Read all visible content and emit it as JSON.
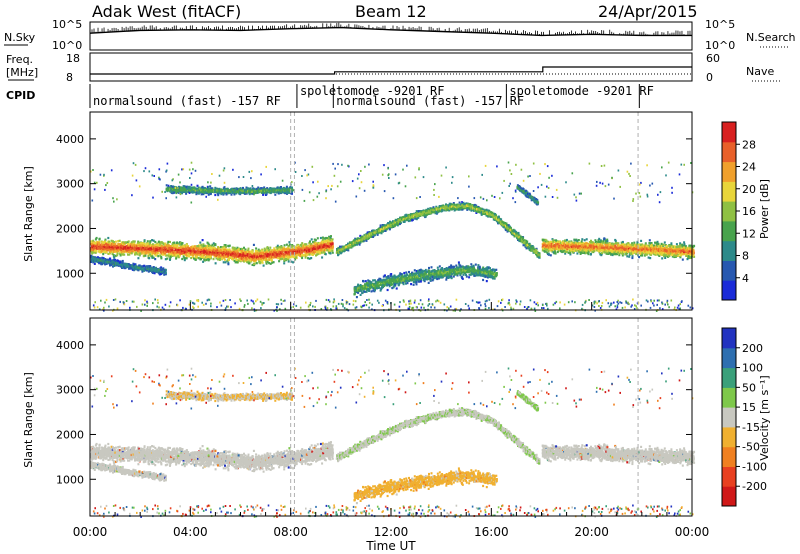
{
  "header": {
    "station": "Adak West (fitACF)",
    "beam": "Beam 12",
    "date": "24/Apr/2015"
  },
  "summary_panels": {
    "nsky": {
      "label": "N.Sky",
      "ticks": [
        "10^5",
        "10^0"
      ]
    },
    "nsearch": {
      "label": "N.Search",
      "ticks": [
        "10^5",
        "10^0"
      ]
    },
    "freq": {
      "label_line1": "Freq.",
      "label_line2": "[MHz]",
      "ticks": [
        "18",
        "8"
      ]
    },
    "nave": {
      "label": "Nave",
      "ticks": [
        "60",
        "0"
      ]
    },
    "cpid": {
      "label": "CPID",
      "segments": [
        {
          "start_h": 0.0,
          "end_h": 8.25,
          "text": "normalsound (fast) -157 RF"
        },
        {
          "start_h": 8.25,
          "end_h": 9.7,
          "text": "spoletomode -9201 RF"
        },
        {
          "start_h": 9.7,
          "end_h": 16.6,
          "text": "normalsound (fast) -157 RF"
        },
        {
          "start_h": 16.6,
          "end_h": 21.9,
          "text": "spoletomode -9201 RF"
        }
      ]
    }
  },
  "axes": {
    "xlabel": "Time UT",
    "xticks": [
      "00:00",
      "04:00",
      "08:00",
      "12:00",
      "16:00",
      "20:00",
      "00:00"
    ],
    "xlim_hours": [
      0,
      24
    ],
    "ylabel": "Slant Range [km]",
    "yticks": [
      "1000",
      "2000",
      "3000",
      "4000"
    ],
    "ylim_km": [
      180,
      4600
    ]
  },
  "colorbars": {
    "power": {
      "label": "Power [dB]",
      "ticks": [
        "4",
        "8",
        "12",
        "16",
        "20",
        "24",
        "28"
      ],
      "colors": [
        "#1a2bd8",
        "#2758b0",
        "#2d8a8a",
        "#48a34d",
        "#8fc043",
        "#e8d53a",
        "#f0a02c",
        "#e8602a",
        "#d82020"
      ]
    },
    "velocity": {
      "label": "Velocity [m s⁻¹]",
      "ticks": [
        "200",
        "100",
        "50",
        "15",
        "-15",
        "-50",
        "-100",
        "-200"
      ],
      "colors": [
        "#2233c0",
        "#2e6fb0",
        "#3aa07a",
        "#7ec84a",
        "#c8c8c0",
        "#f0b030",
        "#f08020",
        "#e84020",
        "#d01818"
      ]
    }
  },
  "chart_data": {
    "type": "heatmap",
    "x_units": "hours UT",
    "y_units": "km",
    "bands": [
      {
        "name": "main band",
        "points": [
          [
            0.0,
            1620
          ],
          [
            2.0,
            1570
          ],
          [
            4.0,
            1520
          ],
          [
            5.5,
            1460
          ],
          [
            6.5,
            1390
          ],
          [
            7.5,
            1460
          ],
          [
            8.5,
            1530
          ],
          [
            9.6,
            1660
          ]
        ],
        "halfwidth_km": 300,
        "density": 0.85,
        "pmax": 30,
        "velocity": "near-zero"
      },
      {
        "name": "upper patch",
        "points": [
          [
            3.0,
            2900
          ],
          [
            5.0,
            2860
          ],
          [
            6.5,
            2860
          ],
          [
            8.0,
            2880
          ]
        ],
        "halfwidth_km": 130,
        "density": 0.5,
        "pmax": 14,
        "velocity": "slightly negative"
      },
      {
        "name": "arch",
        "points": [
          [
            9.8,
            1500
          ],
          [
            11.0,
            1850
          ],
          [
            12.5,
            2250
          ],
          [
            14.0,
            2480
          ],
          [
            15.0,
            2530
          ],
          [
            16.0,
            2320
          ],
          [
            17.0,
            1850
          ],
          [
            17.9,
            1400
          ]
        ],
        "halfwidth_km": 130,
        "density": 0.7,
        "pmax": 18,
        "velocity": "near-zero to positive"
      },
      {
        "name": "lower crescent",
        "points": [
          [
            10.5,
            650
          ],
          [
            12.0,
            850
          ],
          [
            13.5,
            1000
          ],
          [
            15.0,
            1100
          ],
          [
            16.2,
            1000
          ]
        ],
        "halfwidth_km": 230,
        "density": 0.6,
        "pmax": 14,
        "velocity": "negative"
      },
      {
        "name": "right band",
        "points": [
          [
            18.0,
            1640
          ],
          [
            20.0,
            1610
          ],
          [
            22.0,
            1560
          ],
          [
            24.0,
            1500
          ]
        ],
        "halfwidth_km": 260,
        "density": 0.8,
        "pmax": 27,
        "velocity": "near-zero"
      },
      {
        "name": "left band",
        "points": [
          [
            0.0,
            1350
          ],
          [
            1.5,
            1180
          ],
          [
            3.0,
            1060
          ]
        ],
        "halfwidth_km": 120,
        "density": 0.5,
        "pmax": 10,
        "velocity": "near-zero"
      },
      {
        "name": "late patch",
        "points": [
          [
            17.0,
            2950
          ],
          [
            17.8,
            2600
          ]
        ],
        "halfwidth_km": 90,
        "density": 0.6,
        "pmax": 12,
        "velocity": "positive"
      }
    ],
    "nsky_trace": [
      [
        0,
        3.0
      ],
      [
        2,
        3.5
      ],
      [
        4,
        3.6
      ],
      [
        6,
        3.5
      ],
      [
        8,
        3.8
      ],
      [
        10,
        4.0
      ],
      [
        12,
        3.6
      ],
      [
        14,
        3.3
      ],
      [
        16,
        3.0
      ],
      [
        18,
        2.6
      ],
      [
        20,
        2.8
      ],
      [
        22,
        2.6
      ],
      [
        24,
        2.6
      ]
    ],
    "freq_trace": [
      [
        0,
        10.5
      ],
      [
        9.75,
        10.5
      ],
      [
        9.75,
        11.3
      ],
      [
        18.05,
        11.3
      ],
      [
        18.05,
        13.0
      ],
      [
        24,
        13.0
      ]
    ],
    "dashed_markers_hours": [
      8.0,
      8.15,
      21.85
    ]
  }
}
